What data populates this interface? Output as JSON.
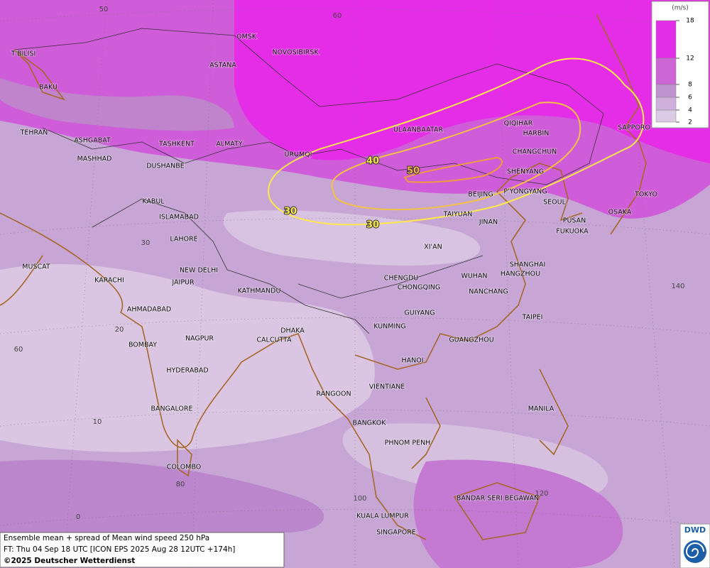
{
  "map": {
    "cities": [
      "OMSK",
      "NOVOSIBIRSK",
      "ASTANA",
      "T'BILISI",
      "BAKU",
      "TEHRAN",
      "ASHGABAT",
      "MASHHAD",
      "TASHKENT",
      "ALMATY",
      "DUSHANBE",
      "URUMQI",
      "ULAANBAATAR",
      "QIQIHAR",
      "HARBIN",
      "CHANGCHUN",
      "SHENYANG",
      "SAPPORO",
      "BEIJING",
      "P'YONGYANG",
      "SEOUL",
      "TOKYO",
      "OSAKA",
      "PUSAN",
      "FUKUOKA",
      "TAIYUAN",
      "JINAN",
      "KABUL",
      "ISLAMABAD",
      "LAHORE",
      "XI'AN",
      "SHANGHAI",
      "HANGZHOU",
      "WUHAN",
      "CHENGDU",
      "CHONGQING",
      "NANCHANG",
      "NEW DELHI",
      "MUSCAT",
      "KARACHI",
      "JAIPUR",
      "KATHMANDU",
      "AHMADABAD",
      "GUIYANG",
      "TAIPEI",
      "KUNMING",
      "DHAKA",
      "CALCUTTA",
      "GUANGZHOU",
      "BOMBAY",
      "NAGPUR",
      "HANOI",
      "HYDERABAD",
      "RANGOON",
      "VIENTIANE",
      "BANGALORE",
      "MANILA",
      "BANGKOK",
      "PHNOM PENH",
      "COLOMBO",
      "BANDAR SERI BEGAWAN",
      "KUALA LUMPUR",
      "SINGAPORE"
    ],
    "grid_labels": [
      50,
      60,
      30,
      20,
      60,
      10,
      80,
      100,
      0,
      120,
      140
    ],
    "isotach_labels": [
      30,
      30,
      40,
      50
    ]
  },
  "legend": {
    "unit": "(m/s)",
    "levels": [
      2,
      4,
      6,
      8,
      12,
      18
    ],
    "colors": [
      "#dccbe4",
      "#cfb0dc",
      "#bf92d0",
      "#cc66d6",
      "#e22ee6"
    ]
  },
  "caption": {
    "lines": [
      "Ensemble mean + spread of Mean wind speed 250 hPa",
      "FT: Thu 04 Sep 18 UTC [ICON EPS 2025 Aug 28 12UTC +174h]"
    ],
    "copyright": "©2025 Deutscher Wetterdienst"
  },
  "logo": "DWD"
}
